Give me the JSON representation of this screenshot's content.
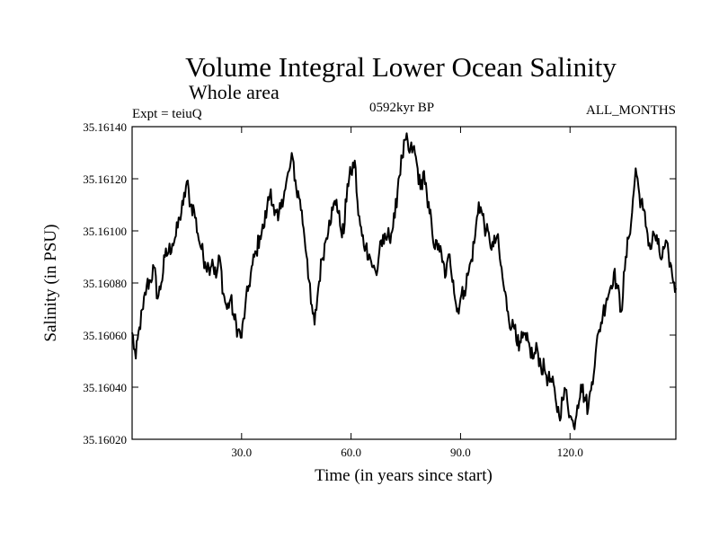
{
  "chart_data": {
    "type": "line",
    "title": "Volume Integral Lower Ocean Salinity",
    "subtitle": "Whole area",
    "expt_label": "Expt = teiuQ",
    "period_label": "0592kyr BP",
    "months_label": "ALL_MONTHS",
    "xlabel": "Time (in years since start)",
    "ylabel": "Salinity (in PSU)",
    "xlim": [
      0,
      149
    ],
    "ylim": [
      35.1602,
      35.1614
    ],
    "x_ticks": [
      30,
      60,
      90,
      120
    ],
    "x_tick_labels": [
      "30.0",
      "60.0",
      "90.0",
      "120.0"
    ],
    "y_ticks": [
      35.1602,
      35.1604,
      35.1606,
      35.1608,
      35.161,
      35.1612,
      35.1614
    ],
    "y_tick_labels": [
      "35.16020",
      "35.16040",
      "35.16060",
      "35.16080",
      "35.16100",
      "35.16120",
      "35.16140"
    ],
    "series": [
      {
        "name": "Volume integral lower ocean salinity",
        "color": "#000000",
        "x": [
          0,
          1,
          2,
          3,
          4,
          5,
          6,
          7,
          8,
          9,
          10,
          11,
          12,
          13,
          14,
          15,
          16,
          17,
          18,
          19,
          20,
          21,
          22,
          23,
          24,
          25,
          26,
          27,
          28,
          29,
          30,
          31,
          32,
          33,
          34,
          35,
          36,
          37,
          38,
          39,
          40,
          41,
          42,
          43,
          44,
          45,
          46,
          47,
          48,
          49,
          50,
          51,
          52,
          53,
          54,
          55,
          56,
          57,
          58,
          59,
          60,
          61,
          62,
          63,
          64,
          65,
          66,
          67,
          68,
          69,
          70,
          71,
          72,
          73,
          74,
          75,
          76,
          77,
          78,
          79,
          80,
          81,
          82,
          83,
          84,
          85,
          86,
          87,
          88,
          89,
          90,
          91,
          92,
          93,
          94,
          95,
          96,
          97,
          98,
          99,
          100,
          101,
          102,
          103,
          104,
          105,
          106,
          107,
          108,
          109,
          110,
          111,
          112,
          113,
          114,
          115,
          116,
          117,
          118,
          119,
          120,
          121,
          122,
          123,
          124,
          125,
          126,
          127,
          128,
          129,
          130,
          131,
          132,
          133,
          134,
          135,
          136,
          137,
          138,
          139,
          140,
          141,
          142,
          143,
          144,
          145,
          146,
          147,
          148,
          149
        ],
        "values": [
          35.16061,
          35.16051,
          35.16063,
          35.1607,
          35.16079,
          35.16081,
          35.16086,
          35.16074,
          35.1608,
          35.1609,
          35.16092,
          35.16095,
          35.16098,
          35.16105,
          35.1611,
          35.16119,
          35.1611,
          35.16108,
          35.16099,
          35.16093,
          35.16088,
          35.16086,
          35.16089,
          35.16082,
          35.1609,
          35.16076,
          35.1607,
          35.16074,
          35.16066,
          35.16062,
          35.16059,
          35.16071,
          35.16079,
          35.16087,
          35.16092,
          35.16098,
          35.16101,
          35.16109,
          35.16116,
          35.16106,
          35.16104,
          35.16112,
          35.16116,
          35.16123,
          35.16128,
          35.16116,
          35.16112,
          35.16101,
          35.16089,
          35.16072,
          35.16064,
          35.16078,
          35.16089,
          35.16096,
          35.16104,
          35.16108,
          35.16112,
          35.16102,
          35.16099,
          35.16118,
          35.16122,
          35.16127,
          35.16106,
          35.16098,
          35.16094,
          35.16091,
          35.16086,
          35.16083,
          35.16096,
          35.16095,
          35.16098,
          35.16099,
          35.16105,
          35.1612,
          35.16128,
          35.16135,
          35.1613,
          35.16132,
          35.16126,
          35.16116,
          35.16123,
          35.16109,
          35.16104,
          35.16093,
          35.16095,
          35.16088,
          35.16083,
          35.16091,
          35.16081,
          35.16069,
          35.16074,
          35.16077,
          35.16083,
          35.16089,
          35.16098,
          35.16111,
          35.16106,
          35.161,
          35.16096,
          35.16094,
          35.16098,
          35.16087,
          35.16077,
          35.16069,
          35.16063,
          35.16064,
          35.16054,
          35.16059,
          35.16058,
          35.16055,
          35.16051,
          35.16055,
          35.16048,
          35.16047,
          35.16043,
          35.16042,
          35.16036,
          35.16029,
          35.16035,
          35.16039,
          35.16029,
          35.16025,
          35.16033,
          35.16041,
          35.16036,
          35.16032,
          35.16042,
          35.16053,
          35.16062,
          35.16068,
          35.16074,
          35.16078,
          35.16084,
          35.16078,
          35.16069,
          35.16085,
          35.16097,
          35.16107,
          35.16124,
          35.16114,
          35.16108,
          35.16101,
          35.16093,
          35.16099,
          35.16095,
          35.16089,
          35.16094,
          35.16091,
          35.16083,
          35.16078
        ]
      }
    ]
  }
}
